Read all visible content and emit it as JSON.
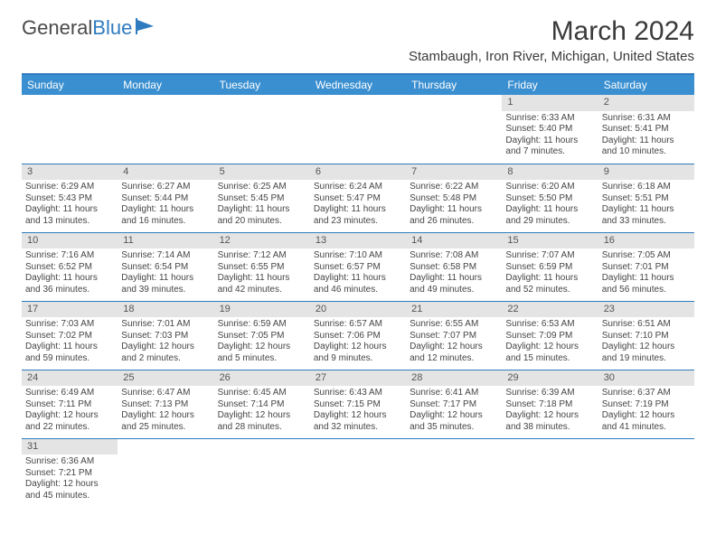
{
  "brand": {
    "part1": "General",
    "part2": "Blue"
  },
  "title": "March 2024",
  "location": "Stambaugh, Iron River, Michigan, United States",
  "colors": {
    "header_bg": "#3a8fd0",
    "rule": "#2f7bbf",
    "daynum_bg": "#e4e4e4",
    "text": "#3a3a3a"
  },
  "weekdays": [
    "Sunday",
    "Monday",
    "Tuesday",
    "Wednesday",
    "Thursday",
    "Friday",
    "Saturday"
  ],
  "weeks": [
    [
      null,
      null,
      null,
      null,
      null,
      {
        "d": "1",
        "sr": "Sunrise: 6:33 AM",
        "ss": "Sunset: 5:40 PM",
        "dl": "Daylight: 11 hours and 7 minutes."
      },
      {
        "d": "2",
        "sr": "Sunrise: 6:31 AM",
        "ss": "Sunset: 5:41 PM",
        "dl": "Daylight: 11 hours and 10 minutes."
      }
    ],
    [
      {
        "d": "3",
        "sr": "Sunrise: 6:29 AM",
        "ss": "Sunset: 5:43 PM",
        "dl": "Daylight: 11 hours and 13 minutes."
      },
      {
        "d": "4",
        "sr": "Sunrise: 6:27 AM",
        "ss": "Sunset: 5:44 PM",
        "dl": "Daylight: 11 hours and 16 minutes."
      },
      {
        "d": "5",
        "sr": "Sunrise: 6:25 AM",
        "ss": "Sunset: 5:45 PM",
        "dl": "Daylight: 11 hours and 20 minutes."
      },
      {
        "d": "6",
        "sr": "Sunrise: 6:24 AM",
        "ss": "Sunset: 5:47 PM",
        "dl": "Daylight: 11 hours and 23 minutes."
      },
      {
        "d": "7",
        "sr": "Sunrise: 6:22 AM",
        "ss": "Sunset: 5:48 PM",
        "dl": "Daylight: 11 hours and 26 minutes."
      },
      {
        "d": "8",
        "sr": "Sunrise: 6:20 AM",
        "ss": "Sunset: 5:50 PM",
        "dl": "Daylight: 11 hours and 29 minutes."
      },
      {
        "d": "9",
        "sr": "Sunrise: 6:18 AM",
        "ss": "Sunset: 5:51 PM",
        "dl": "Daylight: 11 hours and 33 minutes."
      }
    ],
    [
      {
        "d": "10",
        "sr": "Sunrise: 7:16 AM",
        "ss": "Sunset: 6:52 PM",
        "dl": "Daylight: 11 hours and 36 minutes."
      },
      {
        "d": "11",
        "sr": "Sunrise: 7:14 AM",
        "ss": "Sunset: 6:54 PM",
        "dl": "Daylight: 11 hours and 39 minutes."
      },
      {
        "d": "12",
        "sr": "Sunrise: 7:12 AM",
        "ss": "Sunset: 6:55 PM",
        "dl": "Daylight: 11 hours and 42 minutes."
      },
      {
        "d": "13",
        "sr": "Sunrise: 7:10 AM",
        "ss": "Sunset: 6:57 PM",
        "dl": "Daylight: 11 hours and 46 minutes."
      },
      {
        "d": "14",
        "sr": "Sunrise: 7:08 AM",
        "ss": "Sunset: 6:58 PM",
        "dl": "Daylight: 11 hours and 49 minutes."
      },
      {
        "d": "15",
        "sr": "Sunrise: 7:07 AM",
        "ss": "Sunset: 6:59 PM",
        "dl": "Daylight: 11 hours and 52 minutes."
      },
      {
        "d": "16",
        "sr": "Sunrise: 7:05 AM",
        "ss": "Sunset: 7:01 PM",
        "dl": "Daylight: 11 hours and 56 minutes."
      }
    ],
    [
      {
        "d": "17",
        "sr": "Sunrise: 7:03 AM",
        "ss": "Sunset: 7:02 PM",
        "dl": "Daylight: 11 hours and 59 minutes."
      },
      {
        "d": "18",
        "sr": "Sunrise: 7:01 AM",
        "ss": "Sunset: 7:03 PM",
        "dl": "Daylight: 12 hours and 2 minutes."
      },
      {
        "d": "19",
        "sr": "Sunrise: 6:59 AM",
        "ss": "Sunset: 7:05 PM",
        "dl": "Daylight: 12 hours and 5 minutes."
      },
      {
        "d": "20",
        "sr": "Sunrise: 6:57 AM",
        "ss": "Sunset: 7:06 PM",
        "dl": "Daylight: 12 hours and 9 minutes."
      },
      {
        "d": "21",
        "sr": "Sunrise: 6:55 AM",
        "ss": "Sunset: 7:07 PM",
        "dl": "Daylight: 12 hours and 12 minutes."
      },
      {
        "d": "22",
        "sr": "Sunrise: 6:53 AM",
        "ss": "Sunset: 7:09 PM",
        "dl": "Daylight: 12 hours and 15 minutes."
      },
      {
        "d": "23",
        "sr": "Sunrise: 6:51 AM",
        "ss": "Sunset: 7:10 PM",
        "dl": "Daylight: 12 hours and 19 minutes."
      }
    ],
    [
      {
        "d": "24",
        "sr": "Sunrise: 6:49 AM",
        "ss": "Sunset: 7:11 PM",
        "dl": "Daylight: 12 hours and 22 minutes."
      },
      {
        "d": "25",
        "sr": "Sunrise: 6:47 AM",
        "ss": "Sunset: 7:13 PM",
        "dl": "Daylight: 12 hours and 25 minutes."
      },
      {
        "d": "26",
        "sr": "Sunrise: 6:45 AM",
        "ss": "Sunset: 7:14 PM",
        "dl": "Daylight: 12 hours and 28 minutes."
      },
      {
        "d": "27",
        "sr": "Sunrise: 6:43 AM",
        "ss": "Sunset: 7:15 PM",
        "dl": "Daylight: 12 hours and 32 minutes."
      },
      {
        "d": "28",
        "sr": "Sunrise: 6:41 AM",
        "ss": "Sunset: 7:17 PM",
        "dl": "Daylight: 12 hours and 35 minutes."
      },
      {
        "d": "29",
        "sr": "Sunrise: 6:39 AM",
        "ss": "Sunset: 7:18 PM",
        "dl": "Daylight: 12 hours and 38 minutes."
      },
      {
        "d": "30",
        "sr": "Sunrise: 6:37 AM",
        "ss": "Sunset: 7:19 PM",
        "dl": "Daylight: 12 hours and 41 minutes."
      }
    ],
    [
      {
        "d": "31",
        "sr": "Sunrise: 6:36 AM",
        "ss": "Sunset: 7:21 PM",
        "dl": "Daylight: 12 hours and 45 minutes."
      },
      null,
      null,
      null,
      null,
      null,
      null
    ]
  ]
}
